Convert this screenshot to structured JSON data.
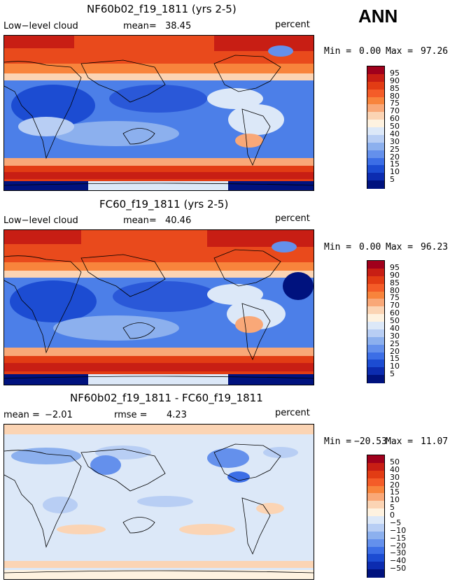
{
  "season": "ANN",
  "panels": [
    {
      "title": "NF60b02_f19_1811 (yrs 2-5)",
      "left_label": "Low−level cloud",
      "stat_label": "mean=",
      "stat_value": "38.45",
      "units": "percent",
      "min_label": "Min =",
      "min_value": "0.00",
      "max_label": "Max =",
      "max_value": "97.26",
      "levels": [
        "95",
        "90",
        "85",
        "80",
        "75",
        "70",
        "60",
        "50",
        "40",
        "30",
        "25",
        "20",
        "15",
        "10",
        "5"
      ],
      "colors": [
        "#a0001c",
        "#c81e14",
        "#e23c14",
        "#f45c28",
        "#f8843c",
        "#f9a878",
        "#fbd4b4",
        "#fef2e0",
        "#dce8f8",
        "#b8cef4",
        "#8cb0ee",
        "#6490ec",
        "#3c6ee6",
        "#1c4cd2",
        "#0c2cb0",
        "#00127e"
      ]
    },
    {
      "title": "FC60_f19_1811 (yrs 2-5)",
      "left_label": "Low−level cloud",
      "stat_label": "mean=",
      "stat_value": "40.46",
      "units": "percent",
      "min_label": "Min =",
      "min_value": "0.00",
      "max_label": "Max =",
      "max_value": "96.23",
      "levels": [
        "95",
        "90",
        "85",
        "80",
        "75",
        "70",
        "60",
        "50",
        "40",
        "30",
        "25",
        "20",
        "15",
        "10",
        "5"
      ],
      "colors": [
        "#a0001c",
        "#c81e14",
        "#e23c14",
        "#f45c28",
        "#f8843c",
        "#f9a878",
        "#fbd4b4",
        "#fef2e0",
        "#dce8f8",
        "#b8cef4",
        "#8cb0ee",
        "#6490ec",
        "#3c6ee6",
        "#1c4cd2",
        "#0c2cb0",
        "#00127e"
      ]
    },
    {
      "title": "NF60b02_f19_1811 - FC60_f19_1811",
      "left_label": "mean =",
      "left_value": "−2.01",
      "stat_label": "rmse =",
      "stat_value": "4.23",
      "units": "percent",
      "min_label": "Min =",
      "min_value": "−20.53",
      "max_label": "Max =",
      "max_value": "11.07",
      "levels": [
        "50",
        "40",
        "30",
        "20",
        "15",
        "10",
        "5",
        "0",
        "−5",
        "−10",
        "−15",
        "−20",
        "−30",
        "−40",
        "−50"
      ],
      "colors": [
        "#a0001c",
        "#c81e14",
        "#e23c14",
        "#f45c28",
        "#f8843c",
        "#f9a878",
        "#fbd4b4",
        "#fef2e0",
        "#dce8f8",
        "#b8cef4",
        "#8cb0ee",
        "#6490ec",
        "#3c6ee6",
        "#1c4cd2",
        "#0c2cb0",
        "#00127e"
      ]
    }
  ]
}
